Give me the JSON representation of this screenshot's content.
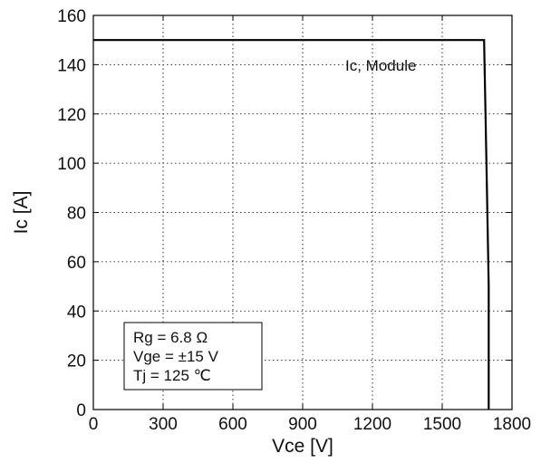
{
  "chart_data": {
    "type": "line",
    "title": "",
    "xlabel": "Vce [V]",
    "ylabel": "Ic [A]",
    "xlim": [
      0,
      1800
    ],
    "ylim": [
      0,
      160
    ],
    "x_ticks": [
      0,
      300,
      600,
      900,
      1200,
      1500,
      1800
    ],
    "y_ticks": [
      0,
      20,
      40,
      60,
      80,
      100,
      120,
      140,
      160
    ],
    "x_tick_labels": [
      "0",
      "300",
      "600",
      "900",
      "1200",
      "1500",
      "1800"
    ],
    "y_tick_labels": [
      "0",
      "20",
      "40",
      "60",
      "80",
      "100",
      "120",
      "140",
      "160"
    ],
    "grid": true,
    "grid_style": "dotted",
    "series": [
      {
        "name": "Ic, Module",
        "color": "#000000",
        "x": [
          0,
          1680,
          1690,
          1700,
          1700
        ],
        "y": [
          150,
          150,
          100,
          50,
          0
        ]
      }
    ],
    "annotations": {
      "series_label": "Ic, Module",
      "conditions": [
        "Rg = 6.8 Ω",
        "Vge = ±15 V",
        "Tj = 125 ℃"
      ]
    }
  }
}
